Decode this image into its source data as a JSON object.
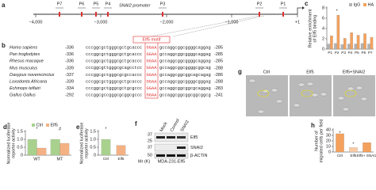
{
  "promoter": {
    "panel": "a",
    "gene": "SNAI2 promoter",
    "sites": [
      "P7",
      "P6",
      "P5",
      "P4",
      "P3",
      "P2",
      "P1"
    ],
    "scale": [
      "−4,000",
      "−3,000",
      "−2,000",
      "−1,000",
      "+1"
    ]
  },
  "alignment": {
    "panel": "b",
    "motif_label": "Elf5 motif",
    "rows": [
      {
        "species": "Homo sapiens",
        "start": "-336",
        "left": "cccggcgctgggcgctgcaccc",
        "motif": "GGAA",
        "right": "gccaggcggcggggcaggag",
        "end": "-285"
      },
      {
        "species": "Pan troglodytes",
        "start": "-336",
        "left": "cccggcgctgggcgctgcaccc",
        "motif": "GGAA",
        "right": "gccaggcggcggggcaggag",
        "end": "-285"
      },
      {
        "species": "Rhesus macaque",
        "start": "-336",
        "left": "cccggcgctgggcgctgcaccc",
        "motif": "GGAA",
        "right": "gccaggcggcggggcaggag",
        "end": "-285"
      },
      {
        "species": "Mus musculus",
        "start": "-339",
        "left": "cccggcgttgggcgcagcctcc",
        "motif": "GGAA",
        "right": "gccaggcggcggggcggcag",
        "end": "-288"
      },
      {
        "species": "Dasypus novemcinctus",
        "start": "-337",
        "left": "cccggcgctgggcgcgccaccc",
        "motif": "GGAA",
        "right": "gccaggcggcggcagcagag",
        "end": "-286"
      },
      {
        "species": "Loxodonta Africana",
        "start": "-339",
        "left": "cccggcgctgggcgctgcaccc",
        "motif": "GGAA",
        "right": "gccaggcggcggggcgggag",
        "end": "-288"
      },
      {
        "species": "Echinops telfairi",
        "start": "-334",
        "left": "cccggcgctgggcgctgcgccc",
        "motif": "GGAA",
        "right": "gccaggcggcggcgcaggag",
        "end": "-283"
      },
      {
        "species": "Gallus Gallus",
        "start": "-292",
        "left": "cccggcgccgggcgcggcgccc",
        "motif": "GGAA",
        "right": "gccaggcggcggcggcggcg",
        "end": "-241"
      }
    ]
  },
  "blot": {
    "panel": "f",
    "lanes": [
      "Mock",
      "Control",
      "SNAI2"
    ],
    "mr_label": "Mr (K)",
    "markers": [
      "37",
      "25",
      "37",
      "50"
    ],
    "proteins": [
      "Elf5",
      "SNAI2",
      "β-ACTIN"
    ],
    "cell_line": "MDA-231-Elf5"
  },
  "images": {
    "panel": "g",
    "labels": [
      "Ctrl",
      "Elf5",
      "Elf5+SNAI2"
    ]
  },
  "chart_data": [
    {
      "panel": "c",
      "type": "bar",
      "ylabel": [
        "Relative enrichment",
        "of Elf5 binding"
      ],
      "categories": [
        "P1",
        "P2",
        "P3",
        "P4",
        "P5",
        "P6",
        "P7"
      ],
      "series": [
        {
          "name": "IgG",
          "color": "#b3b3b3",
          "values": [
            1,
            1.1,
            0.9,
            1,
            1,
            1.1,
            1
          ]
        },
        {
          "name": "HA",
          "color": "#f4a15d",
          "values": [
            2.6,
            6.6,
            2.1,
            3.2,
            2.7,
            3,
            2.3
          ]
        }
      ],
      "ylim": [
        0,
        8
      ],
      "yticks": [
        0,
        2,
        4,
        6,
        8
      ],
      "annotations": [
        "*"
      ]
    },
    {
      "panel": "d",
      "type": "bar",
      "ylabel": [
        "Normalized luciferase",
        "reporter activity"
      ],
      "categories": [
        "WT",
        "MT"
      ],
      "series": [
        {
          "name": "Ctrl",
          "color": "#a9d18e",
          "values": [
            1,
            1
          ]
        },
        {
          "name": "Elf5",
          "color": "#f4b183",
          "values": [
            0.45,
            0.75
          ]
        }
      ],
      "ylim": [
        0,
        1.5
      ],
      "yticks": [
        0,
        0.5,
        {
          "value": 1,
          "label": "1.0"
        },
        1.5
      ],
      "annotations": [
        "*",
        "#"
      ]
    },
    {
      "panel": "e",
      "type": "bar",
      "ylabel": [
        "Normalized luciferase",
        "reporter activity"
      ],
      "categories": [
        "Ctrl",
        "Elf5"
      ],
      "values": [
        1,
        0.62
      ],
      "colors": [
        "#a9d18e",
        "#f4b183"
      ],
      "ylim": [
        0,
        1.5
      ],
      "yticks": [
        0,
        0.5,
        {
          "value": 1,
          "label": "1.0"
        },
        1.5
      ],
      "annotations": [
        "*"
      ]
    },
    {
      "panel": "h",
      "type": "bar",
      "ylabel": [
        "Number of",
        "migrated cells per field"
      ],
      "categories": [
        "Ctrl",
        "Elf5",
        "Elf5+ SNAI2"
      ],
      "values": [
        33,
        8,
        17
      ],
      "colors": [
        "#f4a15d",
        "#f8cba6",
        "#f4a15d"
      ],
      "ylim": [
        0,
        40
      ],
      "yticks": [
        0,
        10,
        20,
        30,
        40
      ],
      "annotations": [
        "*",
        "*"
      ]
    }
  ]
}
